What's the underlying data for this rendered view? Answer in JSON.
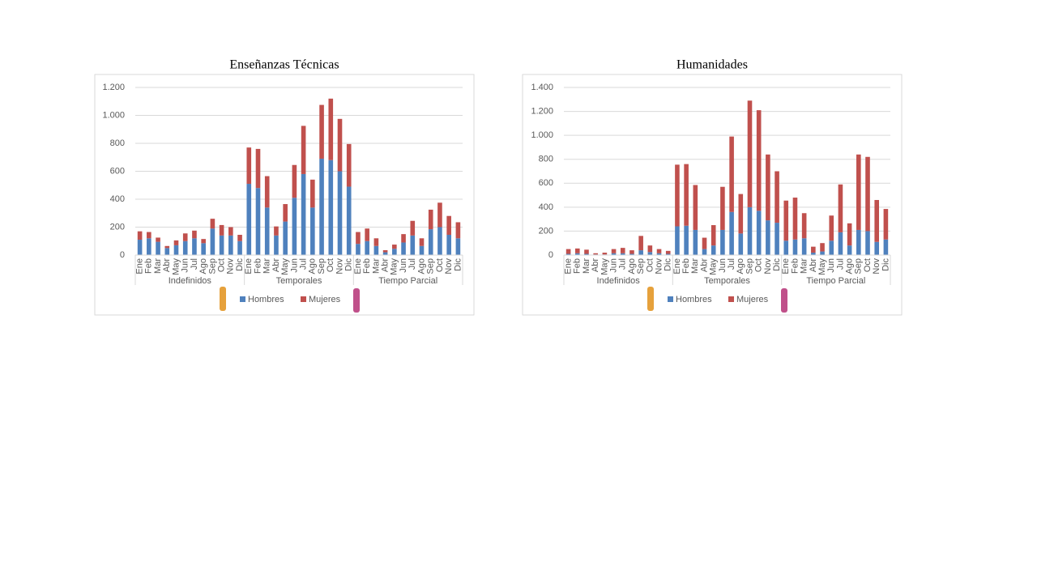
{
  "chart_data": [
    {
      "type": "bar",
      "stacked": true,
      "title": "Enseñanzas Técnicas",
      "categories": [
        "Ene",
        "Feb",
        "Mar",
        "Abr",
        "May",
        "Jun",
        "Jul",
        "Ago",
        "Sep",
        "Oct",
        "Nov",
        "Dic",
        "Ene",
        "Feb",
        "Mar",
        "Abr",
        "May",
        "Jun",
        "Jul",
        "Ago",
        "Sep",
        "Oct",
        "Nov",
        "Dic",
        "Ene",
        "Feb",
        "Mar",
        "Abr",
        "May",
        "Jun",
        "Jul",
        "Ago",
        "Sep",
        "Oct",
        "Nov",
        "Dic"
      ],
      "groups": [
        "Indefinidos",
        "Temporales",
        "Tiempo Parcial"
      ],
      "series": [
        {
          "name": "Hombres",
          "color": "#4f81bd",
          "values": [
            110,
            120,
            95,
            50,
            70,
            100,
            120,
            85,
            190,
            140,
            140,
            100,
            510,
            480,
            340,
            140,
            240,
            410,
            580,
            340,
            690,
            680,
            600,
            490,
            80,
            100,
            65,
            20,
            45,
            90,
            140,
            65,
            185,
            200,
            145,
            120
          ]
        },
        {
          "name": "Mujeres",
          "color": "#c0504d",
          "values": [
            60,
            45,
            30,
            15,
            35,
            55,
            55,
            30,
            70,
            75,
            60,
            45,
            260,
            280,
            225,
            65,
            125,
            235,
            345,
            200,
            385,
            440,
            375,
            305,
            85,
            90,
            55,
            15,
            30,
            60,
            105,
            55,
            140,
            175,
            135,
            115
          ]
        }
      ],
      "ylim": [
        0,
        1200
      ],
      "yticks": [
        0,
        200,
        400,
        600,
        800,
        {
          "value": 1000,
          "label": "1.000"
        },
        {
          "value": 1200,
          "label": "1.200"
        }
      ],
      "grid": true
    },
    {
      "type": "bar",
      "stacked": true,
      "title": "Humanidades",
      "categories": [
        "Ene",
        "Feb",
        "Mar",
        "Abr",
        "May",
        "Jun",
        "Jul",
        "Ago",
        "Sep",
        "Oct",
        "Nov",
        "Dic",
        "Ene",
        "Feb",
        "Mar",
        "Abr",
        "May",
        "Jun",
        "Jul",
        "Ago",
        "Sep",
        "Oct",
        "Nov",
        "Dic",
        "Ene",
        "Feb",
        "Mar",
        "Abr",
        "May",
        "Jun",
        "Jul",
        "Ago",
        "Sep",
        "Oct",
        "Nov",
        "Dic"
      ],
      "groups": [
        "Indefinidos",
        "Temporales",
        "Tiempo Parcial"
      ],
      "series": [
        {
          "name": "Hombres",
          "color": "#4f81bd",
          "values": [
            10,
            15,
            10,
            5,
            5,
            15,
            15,
            10,
            40,
            25,
            15,
            10,
            240,
            245,
            210,
            50,
            80,
            210,
            360,
            180,
            400,
            370,
            290,
            270,
            120,
            130,
            140,
            20,
            30,
            120,
            190,
            80,
            210,
            200,
            110,
            130
          ]
        },
        {
          "name": "Mujeres",
          "color": "#c0504d",
          "values": [
            40,
            40,
            35,
            10,
            15,
            35,
            45,
            30,
            120,
            55,
            35,
            25,
            515,
            515,
            375,
            95,
            170,
            360,
            630,
            330,
            890,
            840,
            550,
            430,
            335,
            350,
            210,
            50,
            70,
            210,
            400,
            185,
            630,
            620,
            350,
            255
          ]
        }
      ],
      "ylim": [
        0,
        1400
      ],
      "yticks": [
        0,
        200,
        400,
        600,
        800,
        {
          "value": 1000,
          "label": "1.000"
        },
        {
          "value": 1200,
          "label": "1.200"
        },
        {
          "value": 1400,
          "label": "1.400"
        }
      ],
      "grid": true
    }
  ]
}
